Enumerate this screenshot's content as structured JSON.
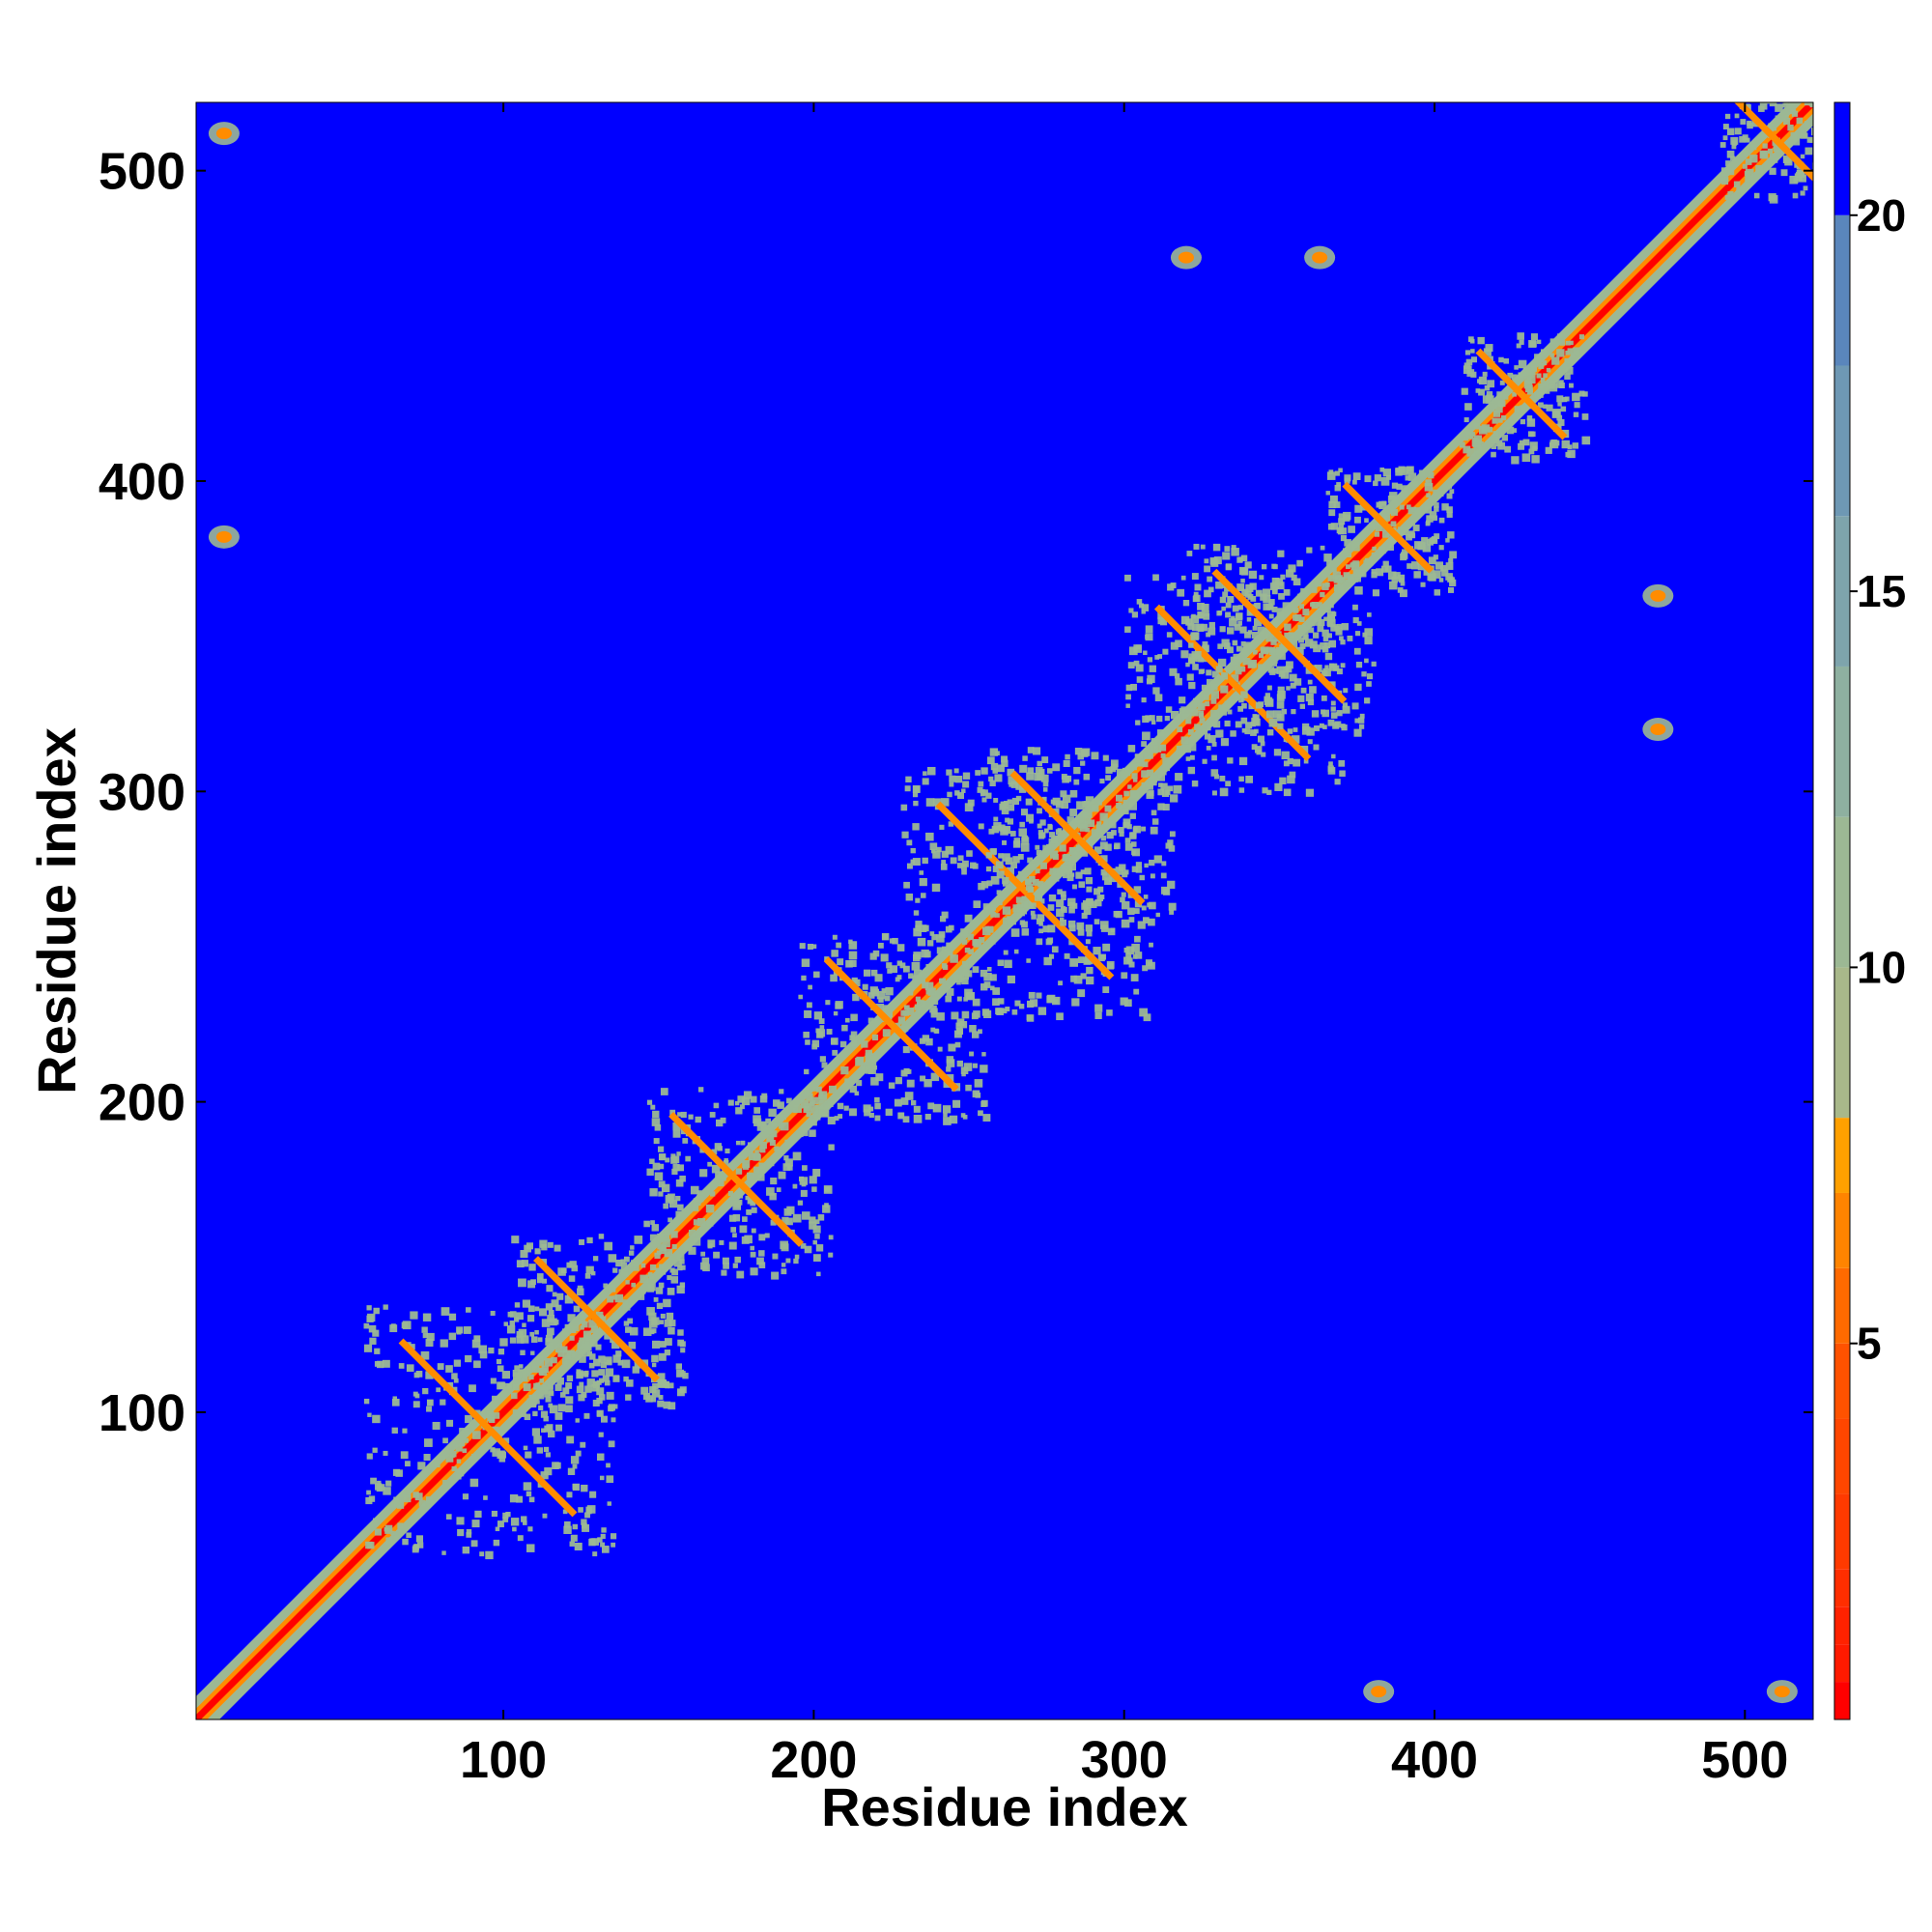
{
  "chart_data": {
    "type": "heatmap",
    "title": "",
    "xlabel": "Residue index",
    "ylabel": "Residue index",
    "xlim": [
      1,
      522
    ],
    "ylim": [
      1,
      522
    ],
    "x_ticks": [
      100,
      200,
      300,
      400,
      500
    ],
    "y_ticks": [
      100,
      200,
      300,
      400,
      500
    ],
    "colorbar": {
      "range": [
        0,
        21.5
      ],
      "ticks": [
        5,
        10,
        15,
        20
      ],
      "tick_labels": [
        "5",
        "10",
        "15",
        "20"
      ],
      "levels": [
        {
          "max": 0.5,
          "color": "#ff0000"
        },
        {
          "max": 1.0,
          "color": "#ff1a00"
        },
        {
          "max": 1.5,
          "color": "#ff2200"
        },
        {
          "max": 2.0,
          "color": "#ff2e00"
        },
        {
          "max": 3.0,
          "color": "#ff3a00"
        },
        {
          "max": 4.0,
          "color": "#ff4600"
        },
        {
          "max": 5.0,
          "color": "#ff5200"
        },
        {
          "max": 6.0,
          "color": "#ff6a00"
        },
        {
          "max": 7.0,
          "color": "#ff8400"
        },
        {
          "max": 8.0,
          "color": "#ffa000"
        },
        {
          "max": 10.0,
          "color": "#a8b88a"
        },
        {
          "max": 12.0,
          "color": "#9cb894"
        },
        {
          "max": 14.0,
          "color": "#8eb0a0"
        },
        {
          "max": 16.0,
          "color": "#7ea4ac"
        },
        {
          "max": 18.0,
          "color": "#6e98b4"
        },
        {
          "max": 20.0,
          "color": "#5a86bc"
        },
        {
          "max": 21.5,
          "color": "#0000ff"
        }
      ]
    },
    "colors": {
      "background_far": "#0000ff",
      "diagonal": "#ff0000",
      "near": "#ff8c00",
      "medium": "#9cb894"
    },
    "contact_features": [
      {
        "type": "diagonal_band",
        "from": 1,
        "to": 522
      },
      {
        "type": "cluster",
        "center": [
          95,
          95
        ],
        "size": 40
      },
      {
        "type": "cluster",
        "center": [
          130,
          130
        ],
        "size": 28
      },
      {
        "type": "cluster",
        "center": [
          175,
          175
        ],
        "size": 30
      },
      {
        "type": "cluster",
        "center": [
          225,
          225
        ],
        "size": 30
      },
      {
        "type": "cluster",
        "center": [
          268,
          268
        ],
        "size": 40
      },
      {
        "type": "cluster",
        "center": [
          285,
          285
        ],
        "size": 30
      },
      {
        "type": "cluster",
        "center": [
          335,
          335
        ],
        "size": 35
      },
      {
        "type": "cluster",
        "center": [
          350,
          350
        ],
        "size": 30
      },
      {
        "type": "cluster",
        "center": [
          385,
          385
        ],
        "size": 20
      },
      {
        "type": "cluster",
        "center": [
          428,
          428
        ],
        "size": 20
      },
      {
        "type": "cluster",
        "center": [
          510,
          510
        ],
        "size": 18
      },
      {
        "type": "spot",
        "center": [
          320,
          472
        ]
      },
      {
        "type": "spot",
        "center": [
          363,
          472
        ]
      },
      {
        "type": "spot",
        "center": [
          472,
          363
        ]
      },
      {
        "type": "spot",
        "center": [
          472,
          320
        ]
      },
      {
        "type": "spot",
        "center": [
          10,
          382
        ]
      },
      {
        "type": "spot",
        "center": [
          382,
          10
        ]
      },
      {
        "type": "spot",
        "center": [
          10,
          512
        ]
      },
      {
        "type": "spot",
        "center": [
          512,
          10
        ]
      }
    ]
  }
}
